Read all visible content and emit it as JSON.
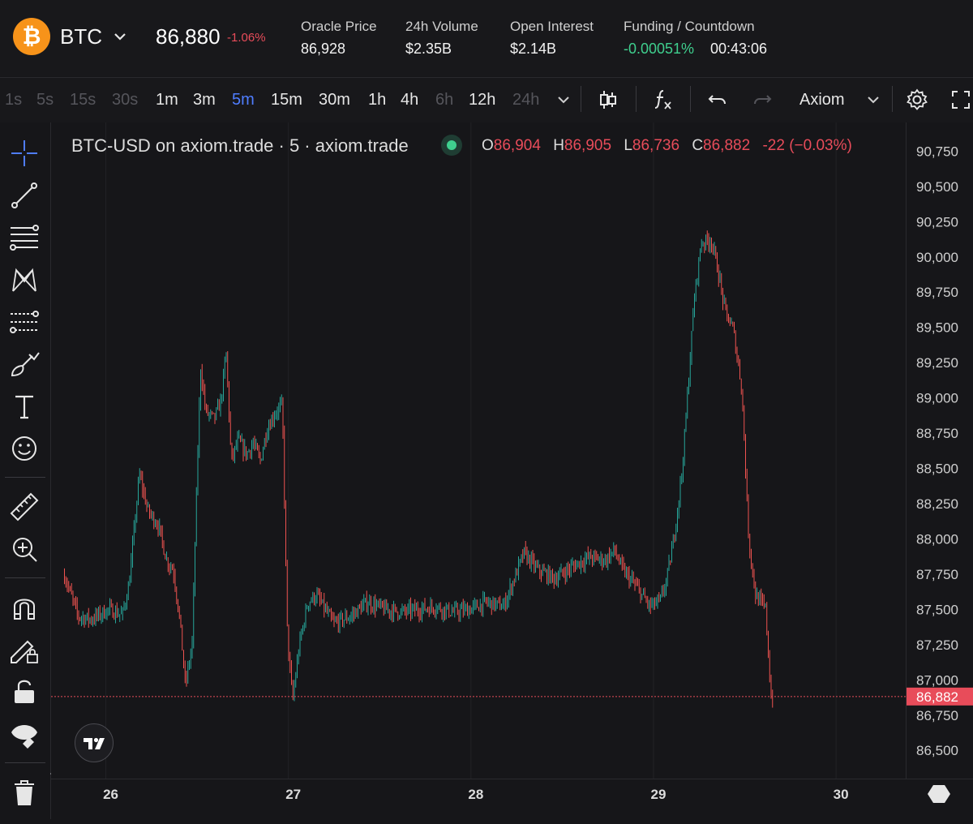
{
  "header": {
    "coin_symbol": "BTC",
    "coin_glyph": "₿",
    "price": "86,880",
    "change": "-1.06%",
    "stats": [
      {
        "label": "Oracle Price",
        "value": "86,928"
      },
      {
        "label": "24h Volume",
        "value": "$2.35B"
      },
      {
        "label": "Open Interest",
        "value": "$2.14B"
      },
      {
        "label": "Funding / Countdown",
        "value": "-0.00051%",
        "value2": "00:43:06"
      }
    ]
  },
  "toolbar": {
    "timeframes": [
      {
        "label": "1s",
        "enabled": false
      },
      {
        "label": "5s",
        "enabled": false
      },
      {
        "label": "15s",
        "enabled": false
      },
      {
        "label": "30s",
        "enabled": false
      },
      {
        "label": "1m",
        "enabled": true
      },
      {
        "label": "3m",
        "enabled": true
      },
      {
        "label": "5m",
        "enabled": true,
        "active": true
      },
      {
        "label": "15m",
        "enabled": true
      },
      {
        "label": "30m",
        "enabled": true
      },
      {
        "label": "1h",
        "enabled": true
      },
      {
        "label": "4h",
        "enabled": true
      },
      {
        "label": "6h",
        "enabled": false
      },
      {
        "label": "12h",
        "enabled": true
      },
      {
        "label": "24h",
        "enabled": false
      }
    ],
    "layout_name": "Axiom",
    "icons": [
      "chevron-down-icon",
      "candles-icon",
      "indicators-icon",
      "undo-icon",
      "redo-icon",
      "settings-icon",
      "fullscreen-icon"
    ]
  },
  "left_tools": [
    "crosshair-icon",
    "trendline-icon",
    "fib-icon",
    "pattern-icon",
    "forecast-icon",
    "brush-icon",
    "text-icon",
    "emoji-icon",
    "ruler-icon",
    "zoom-icon",
    "magnet-icon",
    "lock-drawing-icon",
    "lock-icon",
    "eye-icon",
    "trash-icon"
  ],
  "legend": {
    "title": "BTC-USD on axiom.trade · 5 · axiom.trade",
    "o_label": "O",
    "o": "86,904",
    "h_label": "H",
    "h": "86,905",
    "l_label": "L",
    "l": "86,736",
    "c_label": "C",
    "c": "86,882",
    "delta": "-22 (−0.03%)"
  },
  "colors": {
    "up": "#26a69a",
    "down": "#ef5350",
    "accent": "#4f7dff",
    "last_price": "#e84c5a"
  },
  "chart_data": {
    "type": "candlestick",
    "interval": "5m",
    "y_ticks": [
      90750,
      90500,
      90250,
      90000,
      89750,
      89500,
      89250,
      89000,
      88750,
      88500,
      88250,
      88000,
      87750,
      87500,
      87250,
      87000,
      86750,
      86500
    ],
    "y_tick_labels": [
      "90,750",
      "90,500",
      "90,250",
      "90,000",
      "89,750",
      "89,500",
      "89,250",
      "89,000",
      "88,750",
      "88,500",
      "88,250",
      "88,000",
      "87,750",
      "87,500",
      "87,250",
      "87,000",
      "86,750",
      "86,500"
    ],
    "ylim": [
      86300,
      90850
    ],
    "x_ticks": [
      26,
      27,
      28,
      29,
      30
    ],
    "x_tick_labels": [
      "26",
      "27",
      "28",
      "29",
      "30"
    ],
    "xlim": [
      25.7,
      30.75
    ],
    "last_price": 86882,
    "last_price_label": "86,882",
    "path": [
      [
        25.72,
        87740
      ],
      [
        25.8,
        87450
      ],
      [
        25.88,
        87430
      ],
      [
        25.98,
        87500
      ],
      [
        26.06,
        87460
      ],
      [
        26.1,
        87680
      ],
      [
        26.16,
        88460
      ],
      [
        26.21,
        88200
      ],
      [
        26.27,
        88100
      ],
      [
        26.32,
        87850
      ],
      [
        26.36,
        87780
      ],
      [
        26.4,
        87400
      ],
      [
        26.43,
        86960
      ],
      [
        26.47,
        87250
      ],
      [
        26.5,
        88500
      ],
      [
        26.52,
        89220
      ],
      [
        26.55,
        88900
      ],
      [
        26.6,
        88850
      ],
      [
        26.64,
        88980
      ],
      [
        26.67,
        89320
      ],
      [
        26.7,
        88550
      ],
      [
        26.74,
        88700
      ],
      [
        26.79,
        88600
      ],
      [
        26.83,
        88680
      ],
      [
        26.87,
        88550
      ],
      [
        26.91,
        88780
      ],
      [
        26.96,
        88900
      ],
      [
        27.0,
        88950
      ],
      [
        27.03,
        87300
      ],
      [
        27.06,
        86850
      ],
      [
        27.1,
        87250
      ],
      [
        27.15,
        87550
      ],
      [
        27.2,
        87600
      ],
      [
        27.3,
        87400
      ],
      [
        27.4,
        87450
      ],
      [
        27.5,
        87550
      ],
      [
        27.6,
        87500
      ],
      [
        27.7,
        87480
      ],
      [
        27.8,
        87500
      ],
      [
        27.9,
        87520
      ],
      [
        28.0,
        87480
      ],
      [
        28.1,
        87500
      ],
      [
        28.2,
        87550
      ],
      [
        28.3,
        87520
      ],
      [
        28.35,
        87680
      ],
      [
        28.42,
        87900
      ],
      [
        28.5,
        87780
      ],
      [
        28.6,
        87720
      ],
      [
        28.7,
        87800
      ],
      [
        28.8,
        87870
      ],
      [
        28.9,
        87850
      ],
      [
        28.95,
        87920
      ],
      [
        29.0,
        87780
      ],
      [
        29.08,
        87660
      ],
      [
        29.16,
        87520
      ],
      [
        29.22,
        87560
      ],
      [
        29.26,
        87720
      ],
      [
        29.3,
        88000
      ],
      [
        29.35,
        88500
      ],
      [
        29.42,
        89700
      ],
      [
        29.46,
        90100
      ],
      [
        29.52,
        90120
      ],
      [
        29.56,
        89900
      ],
      [
        29.6,
        89620
      ],
      [
        29.65,
        89480
      ],
      [
        29.7,
        89060
      ],
      [
        29.74,
        88000
      ],
      [
        29.78,
        87600
      ],
      [
        29.84,
        87500
      ],
      [
        29.87,
        86880
      ],
      [
        29.88,
        86882
      ]
    ]
  }
}
